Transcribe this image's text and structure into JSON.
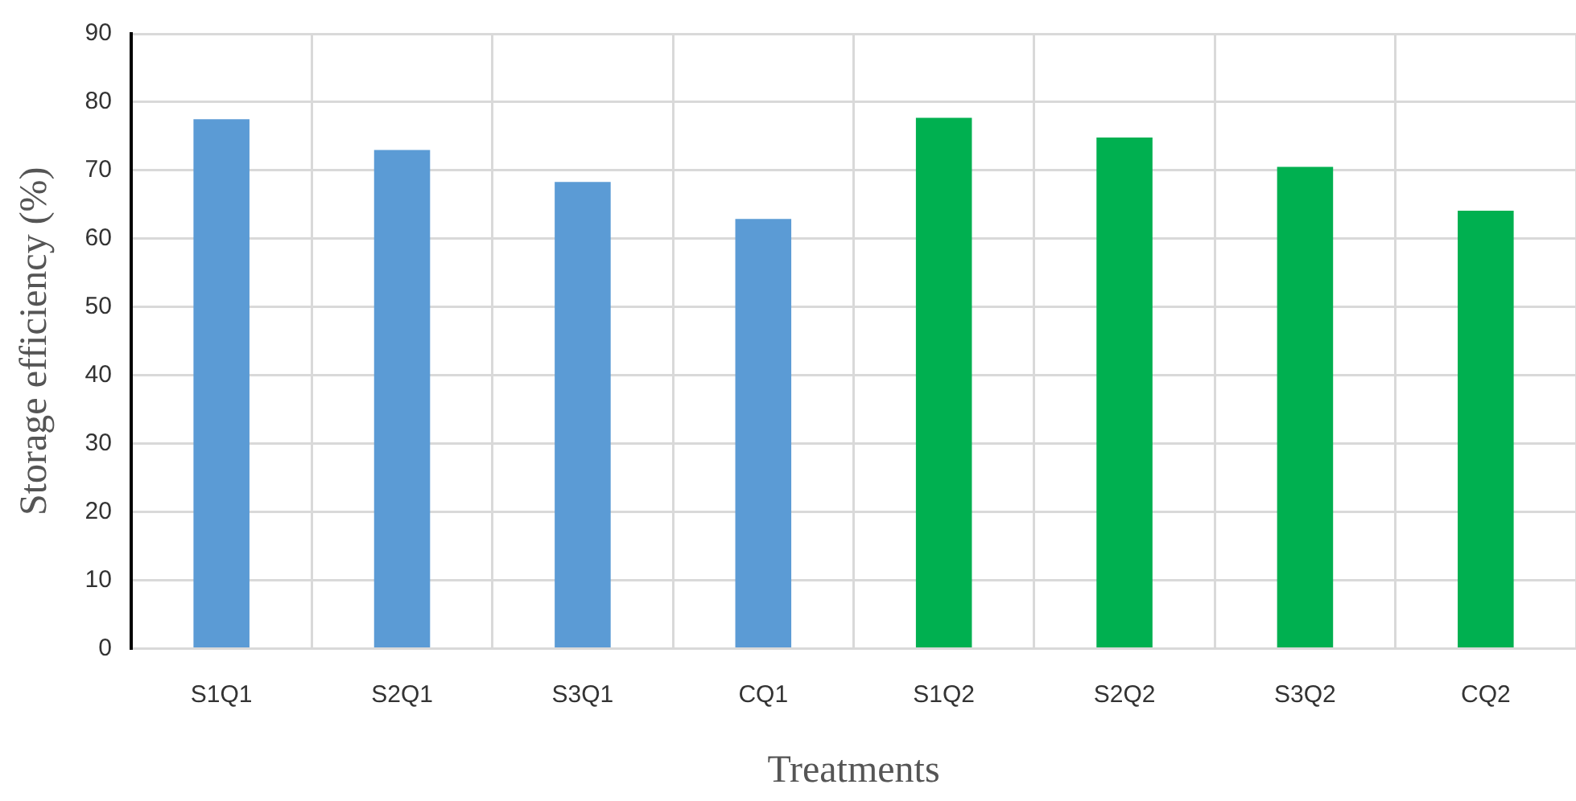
{
  "chart_data": {
    "type": "bar",
    "xlabel": "Treatments",
    "ylabel": "Storage efficiency (%)",
    "categories": [
      "S1Q1",
      "S2Q1",
      "S3Q1",
      "CQ1",
      "S1Q2",
      "S2Q2",
      "S3Q2",
      "CQ2"
    ],
    "values": [
      77.5,
      73.0,
      68.3,
      62.9,
      77.7,
      74.8,
      70.5,
      64.1
    ],
    "colors": [
      "#5b9bd5",
      "#5b9bd5",
      "#5b9bd5",
      "#5b9bd5",
      "#00b050",
      "#00b050",
      "#00b050",
      "#00b050"
    ],
    "ylim": [
      0,
      90
    ],
    "yticks": [
      0,
      10,
      20,
      30,
      40,
      50,
      60,
      70,
      80,
      90
    ],
    "grid": true
  }
}
